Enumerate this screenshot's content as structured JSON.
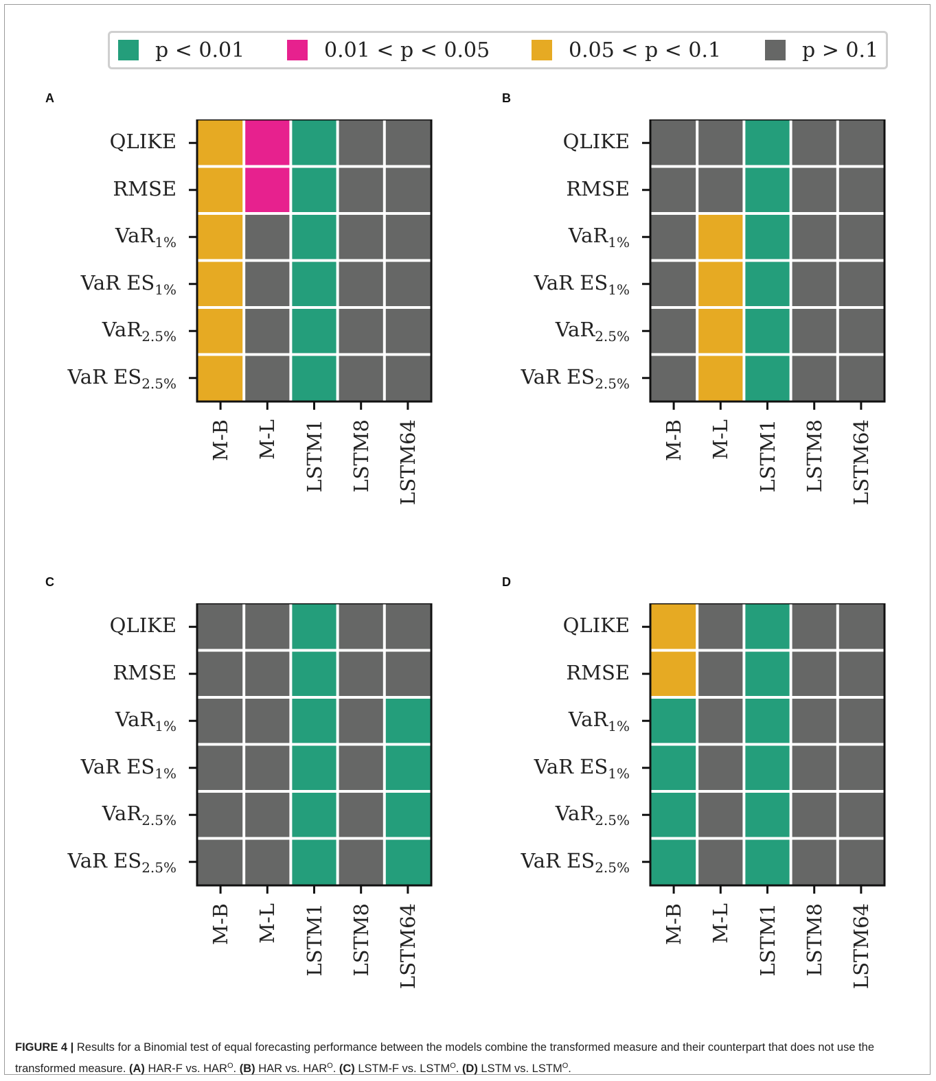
{
  "figure": {
    "caption_label": "FIGURE 4 |",
    "caption_text_1": " Results for a Binomial test of equal forecasting performance between the models combine the transformed measure and their counterpart that does not use the transformed measure. ",
    "caption_parts": [
      {
        "bold": "(A)",
        "model": " HAR-F vs. HAR",
        "sup": "O",
        "tail": ". "
      },
      {
        "bold": "(B)",
        "model": " HAR vs. HAR",
        "sup": "O",
        "tail": ". "
      },
      {
        "bold": "(C)",
        "model": " LSTM-F vs. LSTM",
        "sup": "O",
        "tail": ". "
      },
      {
        "bold": "(D)",
        "model": " LSTM vs. LSTM",
        "sup": "O",
        "tail": "."
      }
    ]
  },
  "legend": [
    {
      "label": "p < 0.01",
      "color": "#249e7b"
    },
    {
      "label": "0.01 < p < 0.05",
      "color": "#e7218e"
    },
    {
      "label": "0.05 < p < 0.1",
      "color": "#e6aa23"
    },
    {
      "label": "p > 0.1",
      "color": "#666766"
    }
  ],
  "chart_data": [
    {
      "type": "heatmap",
      "panel": "A",
      "rows": [
        {
          "base": "QLIKE",
          "sub": ""
        },
        {
          "base": "RMSE",
          "sub": ""
        },
        {
          "base": "VaR",
          "sub": "1%"
        },
        {
          "base": "VaR ES",
          "sub": "1%"
        },
        {
          "base": "VaR",
          "sub": "2.5%"
        },
        {
          "base": "VaR ES",
          "sub": "2.5%"
        }
      ],
      "columns": [
        "M-B",
        "M-L",
        "LSTM1",
        "LSTM8",
        "LSTM64"
      ],
      "categories_legend": [
        "p < 0.01",
        "0.01 < p < 0.05",
        "0.05 < p < 0.1",
        "p > 0.1"
      ],
      "values": [
        [
          2,
          1,
          0,
          3,
          3
        ],
        [
          2,
          1,
          0,
          3,
          3
        ],
        [
          2,
          3,
          0,
          3,
          3
        ],
        [
          2,
          3,
          0,
          3,
          3
        ],
        [
          2,
          3,
          0,
          3,
          3
        ],
        [
          2,
          3,
          0,
          3,
          3
        ]
      ]
    },
    {
      "type": "heatmap",
      "panel": "B",
      "rows": [
        {
          "base": "QLIKE",
          "sub": ""
        },
        {
          "base": "RMSE",
          "sub": ""
        },
        {
          "base": "VaR",
          "sub": "1%"
        },
        {
          "base": "VaR ES",
          "sub": "1%"
        },
        {
          "base": "VaR",
          "sub": "2.5%"
        },
        {
          "base": "VaR ES",
          "sub": "2.5%"
        }
      ],
      "columns": [
        "M-B",
        "M-L",
        "LSTM1",
        "LSTM8",
        "LSTM64"
      ],
      "values": [
        [
          3,
          3,
          0,
          3,
          3
        ],
        [
          3,
          3,
          0,
          3,
          3
        ],
        [
          3,
          2,
          0,
          3,
          3
        ],
        [
          3,
          2,
          0,
          3,
          3
        ],
        [
          3,
          2,
          0,
          3,
          3
        ],
        [
          3,
          2,
          0,
          3,
          3
        ]
      ]
    },
    {
      "type": "heatmap",
      "panel": "C",
      "rows": [
        {
          "base": "QLIKE",
          "sub": ""
        },
        {
          "base": "RMSE",
          "sub": ""
        },
        {
          "base": "VaR",
          "sub": "1%"
        },
        {
          "base": "VaR ES",
          "sub": "1%"
        },
        {
          "base": "VaR",
          "sub": "2.5%"
        },
        {
          "base": "VaR ES",
          "sub": "2.5%"
        }
      ],
      "columns": [
        "M-B",
        "M-L",
        "LSTM1",
        "LSTM8",
        "LSTM64"
      ],
      "values": [
        [
          3,
          3,
          0,
          3,
          3
        ],
        [
          3,
          3,
          0,
          3,
          3
        ],
        [
          3,
          3,
          0,
          3,
          0
        ],
        [
          3,
          3,
          0,
          3,
          0
        ],
        [
          3,
          3,
          0,
          3,
          0
        ],
        [
          3,
          3,
          0,
          3,
          0
        ]
      ]
    },
    {
      "type": "heatmap",
      "panel": "D",
      "rows": [
        {
          "base": "QLIKE",
          "sub": ""
        },
        {
          "base": "RMSE",
          "sub": ""
        },
        {
          "base": "VaR",
          "sub": "1%"
        },
        {
          "base": "VaR ES",
          "sub": "1%"
        },
        {
          "base": "VaR",
          "sub": "2.5%"
        },
        {
          "base": "VaR ES",
          "sub": "2.5%"
        }
      ],
      "columns": [
        "M-B",
        "M-L",
        "LSTM1",
        "LSTM8",
        "LSTM64"
      ],
      "values": [
        [
          2,
          3,
          0,
          3,
          3
        ],
        [
          2,
          3,
          0,
          3,
          3
        ],
        [
          0,
          3,
          0,
          3,
          3
        ],
        [
          0,
          3,
          0,
          3,
          3
        ],
        [
          0,
          3,
          0,
          3,
          3
        ],
        [
          0,
          3,
          0,
          3,
          3
        ]
      ]
    }
  ]
}
